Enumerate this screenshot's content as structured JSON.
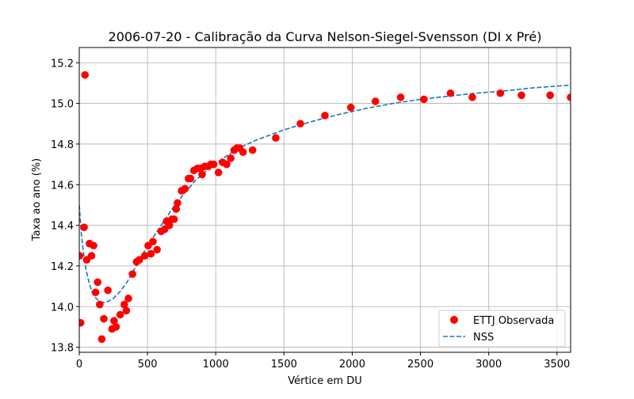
{
  "chart_data": {
    "type": "scatter",
    "title": "2006-07-20 - Calibração da Curva Nelson-Siegel-Svensson (DI x Pré)",
    "xlabel": "Vértice em DU",
    "ylabel": "Taxa ao ano (%)",
    "xlim": [
      0,
      3600
    ],
    "ylim": [
      13.775,
      15.275
    ],
    "xticks": [
      0,
      500,
      1000,
      1500,
      2000,
      2500,
      3000,
      3500
    ],
    "yticks": [
      13.8,
      14.0,
      14.2,
      14.4,
      14.6,
      14.8,
      15.0,
      15.2
    ],
    "grid": true,
    "legend_position": "lower right",
    "series": [
      {
        "name": "ETTJ Observada",
        "kind": "scatter",
        "color": "#ff0000",
        "points": [
          [
            2,
            14.25
          ],
          [
            10,
            13.92
          ],
          [
            35,
            14.39
          ],
          [
            42,
            15.14
          ],
          [
            55,
            14.23
          ],
          [
            75,
            14.31
          ],
          [
            90,
            14.25
          ],
          [
            105,
            14.3
          ],
          [
            120,
            14.07
          ],
          [
            135,
            14.12
          ],
          [
            150,
            14.01
          ],
          [
            165,
            13.84
          ],
          [
            180,
            13.94
          ],
          [
            210,
            14.08
          ],
          [
            240,
            13.89
          ],
          [
            255,
            13.93
          ],
          [
            270,
            13.9
          ],
          [
            300,
            13.96
          ],
          [
            330,
            14.01
          ],
          [
            345,
            13.98
          ],
          [
            360,
            14.04
          ],
          [
            390,
            14.16
          ],
          [
            420,
            14.22
          ],
          [
            440,
            14.23
          ],
          [
            480,
            14.25
          ],
          [
            505,
            14.3
          ],
          [
            525,
            14.26
          ],
          [
            540,
            14.32
          ],
          [
            570,
            14.28
          ],
          [
            600,
            14.37
          ],
          [
            625,
            14.38
          ],
          [
            640,
            14.42
          ],
          [
            660,
            14.4
          ],
          [
            680,
            14.43
          ],
          [
            695,
            14.43
          ],
          [
            710,
            14.48
          ],
          [
            720,
            14.51
          ],
          [
            750,
            14.57
          ],
          [
            775,
            14.58
          ],
          [
            800,
            14.63
          ],
          [
            815,
            14.63
          ],
          [
            840,
            14.67
          ],
          [
            865,
            14.68
          ],
          [
            890,
            14.68
          ],
          [
            900,
            14.65
          ],
          [
            920,
            14.69
          ],
          [
            945,
            14.69
          ],
          [
            965,
            14.7
          ],
          [
            985,
            14.7
          ],
          [
            1020,
            14.66
          ],
          [
            1050,
            14.71
          ],
          [
            1080,
            14.7
          ],
          [
            1110,
            14.73
          ],
          [
            1135,
            14.77
          ],
          [
            1155,
            14.78
          ],
          [
            1175,
            14.78
          ],
          [
            1200,
            14.76
          ],
          [
            1270,
            14.77
          ],
          [
            1440,
            14.83
          ],
          [
            1620,
            14.9
          ],
          [
            1800,
            14.94
          ],
          [
            1990,
            14.98
          ],
          [
            2170,
            15.01
          ],
          [
            2355,
            15.03
          ],
          [
            2525,
            15.02
          ],
          [
            2720,
            15.05
          ],
          [
            2880,
            15.03
          ],
          [
            3085,
            15.05
          ],
          [
            3240,
            15.04
          ],
          [
            3450,
            15.04
          ],
          [
            3600,
            15.03
          ]
        ]
      },
      {
        "name": "NSS",
        "kind": "line",
        "style": "dashed",
        "color": "#1f77b4",
        "points": [
          [
            0,
            14.5
          ],
          [
            15,
            14.36
          ],
          [
            30,
            14.27
          ],
          [
            50,
            14.18
          ],
          [
            75,
            14.11
          ],
          [
            100,
            14.06
          ],
          [
            125,
            14.04
          ],
          [
            150,
            14.025
          ],
          [
            180,
            14.02
          ],
          [
            210,
            14.025
          ],
          [
            250,
            14.04
          ],
          [
            300,
            14.075
          ],
          [
            350,
            14.12
          ],
          [
            400,
            14.18
          ],
          [
            450,
            14.24
          ],
          [
            500,
            14.3
          ],
          [
            550,
            14.35
          ],
          [
            600,
            14.4
          ],
          [
            650,
            14.45
          ],
          [
            700,
            14.5
          ],
          [
            750,
            14.54
          ],
          [
            800,
            14.58
          ],
          [
            850,
            14.62
          ],
          [
            900,
            14.65
          ],
          [
            950,
            14.68
          ],
          [
            1000,
            14.705
          ],
          [
            1100,
            14.75
          ],
          [
            1200,
            14.79
          ],
          [
            1300,
            14.82
          ],
          [
            1400,
            14.845
          ],
          [
            1500,
            14.87
          ],
          [
            1700,
            14.91
          ],
          [
            1900,
            14.945
          ],
          [
            2100,
            14.975
          ],
          [
            2300,
            15.0
          ],
          [
            2500,
            15.02
          ],
          [
            2700,
            15.035
          ],
          [
            2900,
            15.05
          ],
          [
            3100,
            15.06
          ],
          [
            3300,
            15.075
          ],
          [
            3500,
            15.085
          ],
          [
            3600,
            15.09
          ]
        ]
      }
    ]
  }
}
